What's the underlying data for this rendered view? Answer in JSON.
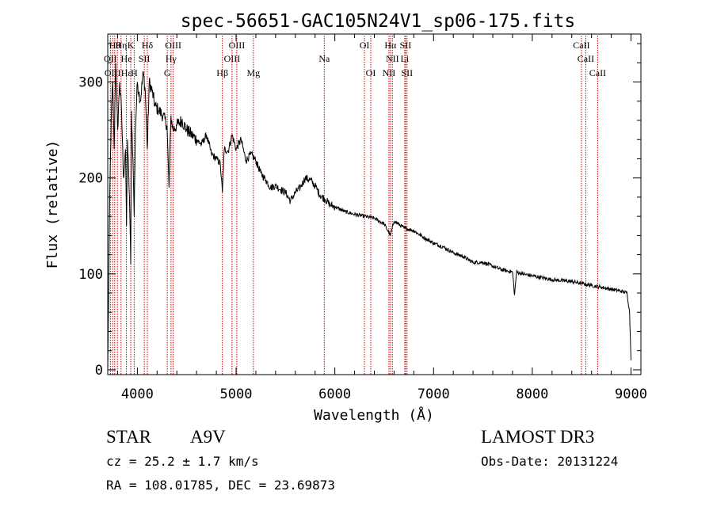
{
  "chart_data": {
    "type": "line",
    "title": "spec-56651-GAC105N24V1_sp06-175.fits",
    "xlabel": "Wavelength (Å)",
    "ylabel": "Flux (relative)",
    "xlim": [
      3700,
      9100
    ],
    "ylim": [
      -5,
      350
    ],
    "x_ticks": [
      4000,
      5000,
      6000,
      7000,
      8000,
      9000
    ],
    "x_tick_labels": [
      "4000",
      "5000",
      "6000",
      "7000",
      "8000",
      "9000"
    ],
    "y_ticks": [
      0,
      100,
      200,
      300
    ],
    "y_tick_labels": [
      "0",
      "100",
      "200",
      "300"
    ],
    "grid": false,
    "series": [
      {
        "name": "spectrum",
        "x": [
          3700,
          3720,
          3735,
          3750,
          3765,
          3780,
          3800,
          3820,
          3840,
          3860,
          3880,
          3890,
          3900,
          3920,
          3933,
          3940,
          3955,
          3968,
          3980,
          4000,
          4030,
          4060,
          4080,
          4101,
          4120,
          4150,
          4180,
          4220,
          4260,
          4300,
          4320,
          4340,
          4360,
          4400,
          4450,
          4500,
          4550,
          4600,
          4650,
          4700,
          4750,
          4800,
          4840,
          4861,
          4880,
          4920,
          4960,
          5000,
          5050,
          5100,
          5150,
          5200,
          5250,
          5300,
          5350,
          5400,
          5450,
          5500,
          5550,
          5600,
          5650,
          5700,
          5750,
          5800,
          5850,
          5900,
          5950,
          6000,
          6100,
          6200,
          6300,
          6400,
          6500,
          6563,
          6600,
          6700,
          6800,
          6900,
          7000,
          7100,
          7200,
          7300,
          7400,
          7500,
          7600,
          7700,
          7800,
          7820,
          7840,
          7900,
          8000,
          8100,
          8200,
          8300,
          8400,
          8500,
          8600,
          8700,
          8800,
          8900,
          8960,
          8985,
          9000
        ],
        "values": [
          0,
          180,
          260,
          300,
          230,
          320,
          250,
          300,
          270,
          200,
          230,
          150,
          240,
          180,
          110,
          270,
          220,
          160,
          250,
          300,
          280,
          310,
          290,
          230,
          300,
          290,
          275,
          270,
          265,
          255,
          190,
          265,
          250,
          255,
          260,
          250,
          245,
          240,
          235,
          245,
          225,
          220,
          215,
          185,
          230,
          228,
          245,
          230,
          240,
          218,
          225,
          218,
          205,
          198,
          190,
          192,
          188,
          185,
          176,
          185,
          190,
          200,
          198,
          192,
          182,
          178,
          172,
          170,
          165,
          162,
          160,
          158,
          152,
          140,
          155,
          148,
          145,
          138,
          132,
          128,
          122,
          118,
          112,
          112,
          108,
          104,
          102,
          78,
          102,
          100,
          98,
          96,
          94,
          93,
          92,
          90,
          88,
          86,
          84,
          82,
          80,
          60,
          10
        ]
      }
    ],
    "line_markers": {
      "color": "#cc0000",
      "wavelengths": [
        3727,
        3750,
        3771,
        3798,
        3835,
        3889,
        3933,
        3968,
        4070,
        4101,
        4303,
        4341,
        4363,
        4861,
        4959,
        5007,
        5175,
        5893,
        6300,
        6364,
        6548,
        6563,
        6583,
        6708,
        6716,
        6731,
        8498,
        8542,
        8662
      ]
    },
    "line_labels": [
      {
        "text": "Hθ",
        "wavelength": 3771,
        "row": 1
      },
      {
        "text": "Hη",
        "wavelength": 3835,
        "row": 1
      },
      {
        "text": "K",
        "wavelength": 3933,
        "row": 1
      },
      {
        "text": "Hδ",
        "wavelength": 4101,
        "row": 1
      },
      {
        "text": "OIII",
        "wavelength": 4363,
        "row": 1
      },
      {
        "text": "OIII",
        "wavelength": 5007,
        "row": 1
      },
      {
        "text": "OI",
        "wavelength": 6300,
        "row": 1
      },
      {
        "text": "Hα",
        "wavelength": 6563,
        "row": 1
      },
      {
        "text": "SII",
        "wavelength": 6716,
        "row": 1
      },
      {
        "text": "CaII",
        "wavelength": 8498,
        "row": 1
      },
      {
        "text": "OII",
        "wavelength": 3727,
        "row": 2
      },
      {
        "text": "He",
        "wavelength": 3889,
        "row": 2
      },
      {
        "text": "SII",
        "wavelength": 4070,
        "row": 2
      },
      {
        "text": "Hγ",
        "wavelength": 4341,
        "row": 2
      },
      {
        "text": "OIII",
        "wavelength": 4959,
        "row": 2
      },
      {
        "text": "Na",
        "wavelength": 5893,
        "row": 2
      },
      {
        "text": "NII",
        "wavelength": 6583,
        "row": 2
      },
      {
        "text": "Li",
        "wavelength": 6708,
        "row": 2
      },
      {
        "text": "CaII",
        "wavelength": 8542,
        "row": 2
      },
      {
        "text": "OIII",
        "wavelength": 3750,
        "row": 3
      },
      {
        "text": "Hε",
        "wavelength": 3889,
        "row": 3
      },
      {
        "text": "H",
        "wavelength": 3968,
        "row": 3
      },
      {
        "text": "G",
        "wavelength": 4303,
        "row": 3
      },
      {
        "text": "Hβ",
        "wavelength": 4861,
        "row": 3
      },
      {
        "text": "Mg",
        "wavelength": 5175,
        "row": 3
      },
      {
        "text": "OI",
        "wavelength": 6364,
        "row": 3
      },
      {
        "text": "NII",
        "wavelength": 6548,
        "row": 3
      },
      {
        "text": "SII",
        "wavelength": 6731,
        "row": 3
      },
      {
        "text": "CaII",
        "wavelength": 8662,
        "row": 3
      }
    ]
  },
  "info": {
    "object_class": "STAR",
    "subclass": "A9V",
    "survey": "LAMOST DR3",
    "redshift_line": "cz = 25.2 ± 1.7 km/s",
    "obs_date_line": "Obs-Date: 20131224",
    "coords_line": "RA = 108.01785, DEC =  23.69873"
  }
}
